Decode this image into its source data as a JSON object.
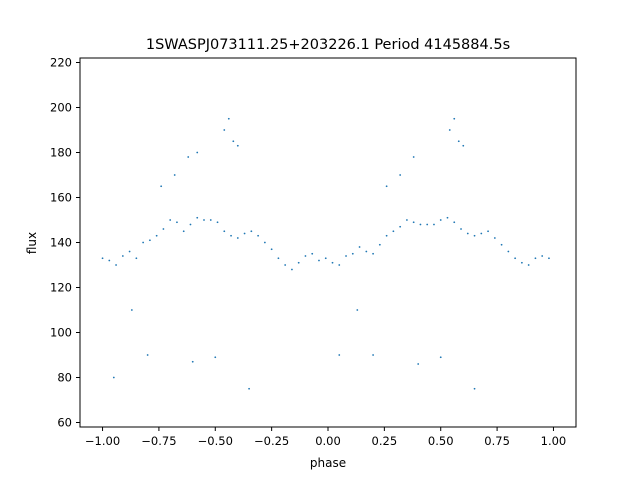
{
  "chart_data": {
    "type": "scatter",
    "title": "1SWASPJ073111.25+203226.1 Period 4145884.5s",
    "xlabel": "phase",
    "ylabel": "flux",
    "xlim": [
      -1.1,
      1.1
    ],
    "ylim": [
      58,
      222
    ],
    "x_ticks": [
      -1.0,
      -0.75,
      -0.5,
      -0.25,
      0.0,
      0.25,
      0.5,
      0.75,
      1.0
    ],
    "x_tick_labels": [
      "−1.00",
      "−0.75",
      "−0.50",
      "−0.25",
      "0.00",
      "0.25",
      "0.50",
      "0.75",
      "1.00"
    ],
    "y_ticks": [
      60,
      80,
      100,
      120,
      140,
      160,
      180,
      200,
      220
    ],
    "y_tick_labels": [
      "60",
      "80",
      "100",
      "120",
      "140",
      "160",
      "180",
      "200",
      "220"
    ],
    "grid": false,
    "legend": "none",
    "marker_color": "#1f77b4",
    "series": [
      {
        "x": [
          -1.0,
          -0.97,
          -0.94,
          -0.91,
          -0.88,
          -0.85,
          -0.82,
          -0.79,
          -0.76,
          -0.73,
          -0.7,
          -0.67,
          -0.64,
          -0.61,
          -0.58,
          -0.55,
          -0.52,
          -0.49,
          -0.46,
          -0.43,
          -0.4,
          -0.37,
          -0.34,
          -0.31,
          -0.28,
          -0.25,
          -0.22,
          -0.19,
          -0.16,
          -0.13,
          -0.1,
          -0.07,
          -0.04,
          -0.01,
          0.02,
          0.05,
          0.08,
          0.11,
          0.14,
          0.17,
          0.2,
          0.23,
          0.26,
          0.29,
          0.32,
          0.35,
          0.38,
          0.41,
          0.44,
          0.47,
          0.5,
          0.53,
          0.56,
          0.59,
          0.62,
          0.65,
          0.68,
          0.71,
          0.74,
          0.77,
          0.8,
          0.83,
          0.86,
          0.89,
          0.92,
          0.95,
          0.98,
          -0.74,
          -0.68,
          -0.62,
          -0.58,
          -0.46,
          -0.44,
          -0.42,
          -0.4,
          -0.87,
          -0.95,
          -0.8,
          0.26,
          0.32,
          0.38,
          0.54,
          0.56,
          0.58,
          0.6,
          0.13,
          0.05,
          0.2,
          -0.5,
          0.5,
          -0.6,
          0.4,
          -0.35,
          0.65
        ],
        "y": [
          133,
          132,
          130,
          134,
          136,
          133,
          140,
          141,
          143,
          146,
          150,
          149,
          145,
          148,
          151,
          150,
          150,
          149,
          145,
          143,
          142,
          144,
          145,
          143,
          140,
          137,
          133,
          130,
          128,
          131,
          134,
          135,
          132,
          133,
          131,
          130,
          134,
          135,
          138,
          136,
          135,
          139,
          143,
          145,
          147,
          150,
          149,
          148,
          148,
          148,
          150,
          151,
          149,
          146,
          144,
          143,
          144,
          145,
          142,
          139,
          136,
          133,
          131,
          130,
          133,
          134,
          133,
          165,
          170,
          178,
          180,
          190,
          195,
          185,
          183,
          110,
          80,
          90,
          165,
          170,
          178,
          190,
          195,
          185,
          183,
          110,
          90,
          90,
          89,
          89,
          87,
          86,
          75,
          75
        ]
      }
    ]
  }
}
